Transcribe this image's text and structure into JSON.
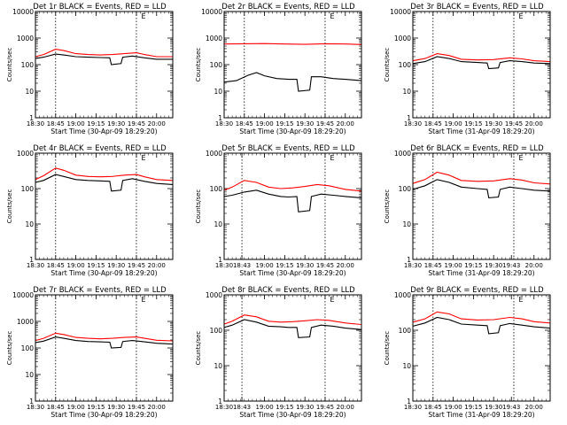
{
  "chart_data": [
    {
      "type": "line",
      "title": "Det 1r BLACK = Events, RED = LLD",
      "xlabel": "Start Time (30-Apr-09 18:29:20)",
      "ylabel": "Counts/sec",
      "scale": "log",
      "ylim": [
        1,
        10000
      ],
      "yticks": [
        1,
        10,
        100,
        1000,
        10000
      ],
      "xlim": [
        18.5,
        20.2
      ],
      "xticks": [
        18.5,
        18.75,
        19.0,
        19.25,
        19.5,
        19.75,
        20.0
      ],
      "xticklabels": [
        "18:30",
        "18:45",
        "19:00",
        "19:15",
        "19:30",
        "19:45",
        "20:00"
      ],
      "vlines": [
        18.75,
        19.75
      ],
      "marker_label": "E",
      "marker_x": 19.8,
      "series": [
        {
          "color": "#000000",
          "x": [
            18.5,
            18.6,
            18.75,
            18.85,
            19.0,
            19.15,
            19.3,
            19.42,
            19.44,
            19.56,
            19.58,
            19.7,
            19.85,
            20.0,
            20.2
          ],
          "values": [
            170,
            190,
            250,
            230,
            200,
            190,
            185,
            180,
            100,
            110,
            190,
            210,
            180,
            160,
            160
          ]
        },
        {
          "color": "#ff0000",
          "x": [
            18.5,
            18.6,
            18.75,
            18.85,
            19.0,
            19.15,
            19.3,
            19.45,
            19.6,
            19.75,
            19.85,
            20.0,
            20.2
          ],
          "values": [
            200,
            240,
            380,
            340,
            260,
            240,
            230,
            240,
            260,
            280,
            240,
            200,
            200
          ]
        }
      ]
    },
    {
      "type": "line",
      "title": "Det 2r BLACK = Events, RED = LLD",
      "xlabel": "Start Time (30-Apr-09 18:29:20)",
      "ylabel": "Counts/sec",
      "scale": "log",
      "ylim": [
        1,
        10000
      ],
      "yticks": [
        1,
        10,
        100,
        1000,
        10000
      ],
      "xlim": [
        18.5,
        20.2
      ],
      "xticks": [
        18.5,
        18.75,
        19.0,
        19.25,
        19.5,
        19.75,
        20.0
      ],
      "xticklabels": [
        "18:30",
        "18:45",
        "19:00",
        "19:15",
        "19:30",
        "19:45",
        "20:00"
      ],
      "vlines": [
        18.75,
        19.75
      ],
      "marker_label": "E",
      "marker_x": 19.8,
      "series": [
        {
          "color": "#000000",
          "x": [
            18.5,
            18.65,
            18.8,
            18.9,
            19.0,
            19.15,
            19.3,
            19.4,
            19.42,
            19.56,
            19.58,
            19.7,
            19.85,
            20.0,
            20.2
          ],
          "values": [
            22,
            25,
            40,
            50,
            38,
            30,
            28,
            28,
            10,
            11,
            35,
            35,
            30,
            28,
            25
          ]
        },
        {
          "color": "#ff0000",
          "x": [
            18.5,
            18.75,
            19.0,
            19.25,
            19.5,
            19.75,
            20.0,
            20.2
          ],
          "values": [
            600,
            610,
            620,
            600,
            580,
            610,
            600,
            570
          ]
        }
      ]
    },
    {
      "type": "line",
      "title": "Det 3r BLACK = Events, RED = LLD",
      "xlabel": "Start Time (31-Apr-09 18:29:20)",
      "ylabel": "Counts/sec",
      "scale": "log",
      "ylim": [
        1,
        10000
      ],
      "yticks": [
        1,
        10,
        100,
        1000,
        10000
      ],
      "xlim": [
        18.5,
        20.2
      ],
      "xticks": [
        18.5,
        18.75,
        19.0,
        19.25,
        19.5,
        19.75,
        20.0
      ],
      "xticklabels": [
        "18:30",
        "18:45",
        "19:00",
        "19:15",
        "19:30",
        "19:45",
        "20:00"
      ],
      "vlines": [
        18.75,
        19.75
      ],
      "marker_label": "E",
      "marker_x": 19.8,
      "series": [
        {
          "color": "#000000",
          "x": [
            18.5,
            18.65,
            18.8,
            18.95,
            19.1,
            19.3,
            19.42,
            19.44,
            19.56,
            19.58,
            19.7,
            19.85,
            20.0,
            20.2
          ],
          "values": [
            110,
            130,
            200,
            170,
            130,
            120,
            115,
            70,
            75,
            120,
            140,
            130,
            115,
            110
          ]
        },
        {
          "color": "#ff0000",
          "x": [
            18.5,
            18.65,
            18.8,
            18.95,
            19.1,
            19.3,
            19.5,
            19.7,
            19.85,
            20.0,
            20.2
          ],
          "values": [
            140,
            170,
            260,
            220,
            160,
            150,
            155,
            180,
            165,
            140,
            130
          ]
        }
      ]
    },
    {
      "type": "line",
      "title": "Det 4r BLACK = Events, RED = LLD",
      "xlabel": "Start Time (30-Apr-09 18:29:20)",
      "ylabel": "Counts/sec",
      "scale": "log",
      "ylim": [
        1,
        1000
      ],
      "yticks": [
        1,
        10,
        100,
        1000
      ],
      "xlim": [
        18.5,
        20.2
      ],
      "xticks": [
        18.5,
        18.75,
        19.0,
        19.25,
        19.5,
        19.75,
        20.0
      ],
      "xticklabels": [
        "18:30",
        "18:45",
        "19:00",
        "19:15",
        "19:30",
        "19:45",
        "20:00"
      ],
      "vlines": [
        18.75,
        19.75
      ],
      "marker_label": "E",
      "marker_x": 19.8,
      "series": [
        {
          "color": "#000000",
          "x": [
            18.5,
            18.6,
            18.75,
            18.85,
            19.0,
            19.15,
            19.3,
            19.42,
            19.44,
            19.56,
            19.58,
            19.7,
            19.85,
            20.0,
            20.2
          ],
          "values": [
            150,
            170,
            250,
            220,
            180,
            170,
            165,
            160,
            85,
            90,
            170,
            190,
            160,
            140,
            130
          ]
        },
        {
          "color": "#ff0000",
          "x": [
            18.5,
            18.6,
            18.75,
            18.85,
            19.0,
            19.15,
            19.3,
            19.45,
            19.6,
            19.75,
            19.85,
            20.0,
            20.2
          ],
          "values": [
            180,
            230,
            380,
            330,
            240,
            220,
            215,
            220,
            240,
            250,
            215,
            180,
            170
          ]
        }
      ]
    },
    {
      "type": "line",
      "title": "Det 5r BLACK = Events, RED = LLD",
      "xlabel": "Start Time (30-Apr-09 18:29:20)",
      "ylabel": "Counts/sec",
      "scale": "log",
      "ylim": [
        1,
        1000
      ],
      "yticks": [
        1,
        10,
        100,
        1000
      ],
      "xlim": [
        18.5,
        20.2
      ],
      "xticks": [
        18.5,
        18.72,
        19.0,
        19.25,
        19.5,
        19.75,
        20.0
      ],
      "xticklabels": [
        "18:30",
        "18:43",
        "19:00",
        "19:15",
        "19:30",
        "19:45",
        "20:00"
      ],
      "vlines": [
        18.72,
        19.75
      ],
      "marker_label": "E",
      "marker_x": 19.8,
      "series": [
        {
          "color": "#000000",
          "x": [
            18.5,
            18.6,
            18.75,
            18.9,
            19.05,
            19.2,
            19.3,
            19.4,
            19.42,
            19.56,
            19.58,
            19.7,
            19.85,
            20.0,
            20.2
          ],
          "values": [
            60,
            65,
            80,
            90,
            70,
            60,
            58,
            60,
            22,
            24,
            60,
            70,
            65,
            60,
            55
          ]
        },
        {
          "color": "#ff0000",
          "x": [
            18.5,
            18.6,
            18.75,
            18.9,
            19.05,
            19.2,
            19.35,
            19.5,
            19.65,
            19.8,
            20.0,
            20.2
          ],
          "values": [
            90,
            110,
            170,
            150,
            110,
            100,
            105,
            115,
            130,
            120,
            95,
            85
          ]
        }
      ]
    },
    {
      "type": "line",
      "title": "Det 6r BLACK = Events, RED = LLD",
      "xlabel": "Start Time (31-Apr-09 18:29:20)",
      "ylabel": "Counts/sec",
      "scale": "log",
      "ylim": [
        1,
        1000
      ],
      "yticks": [
        1,
        10,
        100,
        1000
      ],
      "xlim": [
        18.5,
        20.2
      ],
      "xticks": [
        18.5,
        18.75,
        19.0,
        19.25,
        19.5,
        19.72,
        20.0
      ],
      "xticklabels": [
        "18:30",
        "18:45",
        "19:00",
        "19:15",
        "19:30",
        "19:43",
        "20:00"
      ],
      "vlines": [
        18.75,
        19.75
      ],
      "marker_label": "E",
      "marker_x": 19.8,
      "series": [
        {
          "color": "#000000",
          "x": [
            18.5,
            18.65,
            18.8,
            18.95,
            19.1,
            19.3,
            19.42,
            19.44,
            19.56,
            19.58,
            19.7,
            19.85,
            20.0,
            20.2
          ],
          "values": [
            95,
            120,
            180,
            150,
            110,
            100,
            95,
            55,
            58,
            95,
            110,
            100,
            90,
            85
          ]
        },
        {
          "color": "#ff0000",
          "x": [
            18.5,
            18.65,
            18.8,
            18.95,
            19.1,
            19.3,
            19.5,
            19.7,
            19.85,
            20.0,
            20.2
          ],
          "values": [
            140,
            180,
            290,
            240,
            170,
            160,
            165,
            190,
            175,
            145,
            135
          ]
        }
      ]
    },
    {
      "type": "line",
      "title": "Det 7r BLACK = Events, RED = LLD",
      "xlabel": "Start Time (30-Apr-09 18:29:20)",
      "ylabel": "Counts/sec",
      "scale": "log",
      "ylim": [
        1,
        10000
      ],
      "yticks": [
        1,
        10,
        100,
        1000,
        10000
      ],
      "xlim": [
        18.5,
        20.2
      ],
      "xticks": [
        18.5,
        18.75,
        19.0,
        19.25,
        19.5,
        19.75,
        20.0
      ],
      "xticklabels": [
        "18:30",
        "18:45",
        "19:00",
        "19:15",
        "19:30",
        "19:45",
        "20:00"
      ],
      "vlines": [
        18.75,
        19.75
      ],
      "marker_label": "E",
      "marker_x": 19.8,
      "series": [
        {
          "color": "#000000",
          "x": [
            18.5,
            18.6,
            18.75,
            18.85,
            19.0,
            19.15,
            19.3,
            19.42,
            19.44,
            19.56,
            19.58,
            19.7,
            19.85,
            20.0,
            20.2
          ],
          "values": [
            160,
            180,
            260,
            230,
            190,
            175,
            170,
            165,
            100,
            105,
            175,
            190,
            170,
            150,
            140
          ]
        },
        {
          "color": "#ff0000",
          "x": [
            18.5,
            18.6,
            18.75,
            18.85,
            19.0,
            19.15,
            19.3,
            19.45,
            19.6,
            19.75,
            19.85,
            20.0,
            20.2
          ],
          "values": [
            190,
            230,
            360,
            320,
            250,
            230,
            220,
            230,
            250,
            260,
            230,
            195,
            185
          ]
        }
      ]
    },
    {
      "type": "line",
      "title": "Det 8r BLACK = Events, RED = LLD",
      "xlabel": "Start Time (30-Apr-09 18:29:20)",
      "ylabel": "Counts/sec",
      "scale": "log",
      "ylim": [
        1,
        1000
      ],
      "yticks": [
        1,
        10,
        100,
        1000
      ],
      "xlim": [
        18.5,
        20.2
      ],
      "xticks": [
        18.5,
        18.72,
        19.0,
        19.25,
        19.5,
        19.75,
        20.0
      ],
      "xticklabels": [
        "18:30",
        "18:43",
        "19:00",
        "19:15",
        "19:30",
        "19:45",
        "20:00"
      ],
      "vlines": [
        18.72,
        19.75
      ],
      "marker_label": "E",
      "marker_x": 19.8,
      "series": [
        {
          "color": "#000000",
          "x": [
            18.5,
            18.6,
            18.75,
            18.9,
            19.05,
            19.2,
            19.3,
            19.4,
            19.42,
            19.56,
            19.58,
            19.7,
            19.85,
            20.0,
            20.2
          ],
          "values": [
            120,
            140,
            200,
            170,
            130,
            125,
            120,
            120,
            62,
            65,
            120,
            140,
            130,
            115,
            105
          ]
        },
        {
          "color": "#ff0000",
          "x": [
            18.5,
            18.6,
            18.75,
            18.9,
            19.05,
            19.2,
            19.35,
            19.5,
            19.65,
            19.8,
            20.0,
            20.2
          ],
          "values": [
            150,
            180,
            270,
            240,
            180,
            170,
            175,
            185,
            200,
            190,
            160,
            145
          ]
        }
      ]
    },
    {
      "type": "line",
      "title": "Det 9r BLACK = Events, RED = LLD",
      "xlabel": "Start Time (31-Apr-09 18:29:20)",
      "ylabel": "Counts/sec",
      "scale": "log",
      "ylim": [
        1,
        1000
      ],
      "yticks": [
        1,
        10,
        100,
        1000
      ],
      "xlim": [
        18.5,
        20.2
      ],
      "xticks": [
        18.5,
        18.75,
        19.0,
        19.25,
        19.5,
        19.72,
        20.0
      ],
      "xticklabels": [
        "18:30",
        "18:45",
        "19:00",
        "19:15",
        "19:30",
        "19:43",
        "20:00"
      ],
      "vlines": [
        18.75,
        19.75
      ],
      "marker_label": "E",
      "marker_x": 19.8,
      "series": [
        {
          "color": "#000000",
          "x": [
            18.5,
            18.65,
            18.8,
            18.95,
            19.1,
            19.3,
            19.42,
            19.44,
            19.56,
            19.58,
            19.7,
            19.85,
            20.0,
            20.2
          ],
          "values": [
            130,
            160,
            230,
            200,
            150,
            140,
            135,
            80,
            85,
            135,
            155,
            140,
            125,
            115
          ]
        },
        {
          "color": "#ff0000",
          "x": [
            18.5,
            18.65,
            18.8,
            18.95,
            19.1,
            19.3,
            19.5,
            19.7,
            19.85,
            20.0,
            20.2
          ],
          "values": [
            170,
            210,
            330,
            290,
            210,
            195,
            200,
            230,
            210,
            175,
            160
          ]
        }
      ]
    }
  ]
}
